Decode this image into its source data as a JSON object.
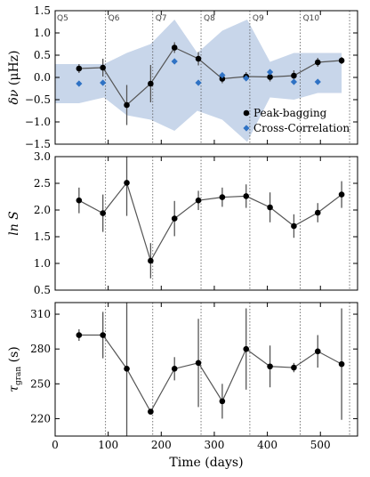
{
  "chart_data": [
    {
      "type": "scatter",
      "ylabel_main": "δν",
      "ylabel_unit": " (μHz)",
      "ylim": [
        -1.5,
        1.5
      ],
      "yticks": [
        -1.5,
        -1.0,
        -0.5,
        0.0,
        0.5,
        1.0,
        1.5
      ],
      "ytick_labels": [
        "−1.5",
        "−1.0",
        "−0.5",
        "0.0",
        "0.5",
        "1.0",
        "1.5"
      ],
      "band_color": "#c8d6ea",
      "band_upper": [
        [
          0,
          0.3
        ],
        [
          45,
          0.3
        ],
        [
          92,
          0.3
        ],
        [
          135,
          0.55
        ],
        [
          180,
          0.75
        ],
        [
          225,
          1.3
        ],
        [
          268,
          0.55
        ],
        [
          315,
          1.05
        ],
        [
          362,
          1.3
        ],
        [
          405,
          0.35
        ],
        [
          450,
          0.55
        ],
        [
          495,
          0.55
        ],
        [
          540,
          0.55
        ],
        [
          540,
          0.55
        ]
      ],
      "band_lower": [
        [
          0,
          -0.58
        ],
        [
          45,
          -0.58
        ],
        [
          92,
          -0.45
        ],
        [
          135,
          -0.85
        ],
        [
          180,
          -0.95
        ],
        [
          225,
          -1.2
        ],
        [
          268,
          -0.75
        ],
        [
          315,
          -0.95
        ],
        [
          362,
          -1.45
        ],
        [
          405,
          -0.45
        ],
        [
          450,
          -0.5
        ],
        [
          495,
          -0.35
        ],
        [
          540,
          -0.35
        ]
      ],
      "series": [
        {
          "name": "Peak-bagging",
          "color": "#000000",
          "x": [
            45,
            90,
            135,
            180,
            225,
            270,
            315,
            360,
            405,
            450,
            495,
            540
          ],
          "y": [
            0.2,
            0.22,
            -0.62,
            -0.14,
            0.67,
            0.42,
            -0.03,
            0.02,
            0.01,
            0.04,
            0.34,
            0.38
          ],
          "yerr": [
            0.1,
            0.2,
            0.45,
            0.42,
            0.12,
            0.15,
            0.1,
            0.1,
            0.1,
            0.12,
            0.1,
            0.08
          ]
        },
        {
          "name": "Cross-Correlation",
          "color": "#2f72c4",
          "x": [
            45,
            90,
            225,
            270,
            315,
            360,
            405,
            450,
            495
          ],
          "y": [
            -0.14,
            -0.12,
            0.36,
            -0.12,
            0.05,
            -0.02,
            0.12,
            -0.1,
            -0.1
          ]
        }
      ],
      "quarters": [
        {
          "label": "Q5",
          "boundary": null
        },
        {
          "label": "Q6",
          "boundary": 95
        },
        {
          "label": "Q7",
          "boundary": 184
        },
        {
          "label": "Q8",
          "boundary": 275
        },
        {
          "label": "Q9",
          "boundary": 367
        },
        {
          "label": "Q10",
          "boundary": 462
        }
      ],
      "extra_boundary": 555,
      "legend_position": "lower-right"
    },
    {
      "type": "line",
      "ylabel_main": "ln",
      "ylabel_var": " S",
      "ylim": [
        0.5,
        3.0
      ],
      "yticks": [
        0.5,
        1.0,
        1.5,
        2.0,
        2.5,
        3.0
      ],
      "ytick_labels": [
        "0.5",
        "1.0",
        "1.5",
        "2.0",
        "2.5",
        "3.0"
      ],
      "series": [
        {
          "color": "#000000",
          "x": [
            45,
            90,
            135,
            180,
            225,
            270,
            315,
            360,
            405,
            450,
            495,
            540
          ],
          "y": [
            2.18,
            1.94,
            2.51,
            1.05,
            1.84,
            2.18,
            2.24,
            2.26,
            2.05,
            1.7,
            1.95,
            2.29
          ],
          "yerr": [
            0.24,
            0.35,
            0.62,
            0.33,
            0.33,
            0.18,
            0.18,
            0.22,
            0.28,
            0.22,
            0.18,
            0.25
          ]
        }
      ],
      "boundaries": [
        95,
        184,
        275,
        367,
        462,
        555
      ]
    },
    {
      "type": "line",
      "ylabel_main": "τ",
      "ylabel_sub": "gran",
      "ylabel_unit": " (s)",
      "ylim": [
        205,
        320
      ],
      "yticks": [
        220,
        250,
        280,
        310
      ],
      "ytick_labels": [
        "220",
        "250",
        "280",
        "310"
      ],
      "xlabel": "Time (days)",
      "xlim": [
        0,
        570
      ],
      "xticks": [
        0,
        100,
        200,
        300,
        400,
        500
      ],
      "xtick_labels": [
        "0",
        "100",
        "200",
        "300",
        "400",
        "500"
      ],
      "series": [
        {
          "color": "#000000",
          "x": [
            45,
            90,
            135,
            180,
            225,
            270,
            315,
            360,
            405,
            450,
            495,
            540
          ],
          "y": [
            292,
            292,
            263,
            226,
            263,
            268,
            235,
            280,
            265,
            264,
            278,
            267
          ],
          "yerr": [
            5,
            20,
            65,
            2,
            10,
            38,
            15,
            35,
            18,
            4,
            14,
            48
          ]
        }
      ],
      "boundaries": [
        95,
        184,
        275,
        367,
        462,
        555
      ]
    }
  ]
}
